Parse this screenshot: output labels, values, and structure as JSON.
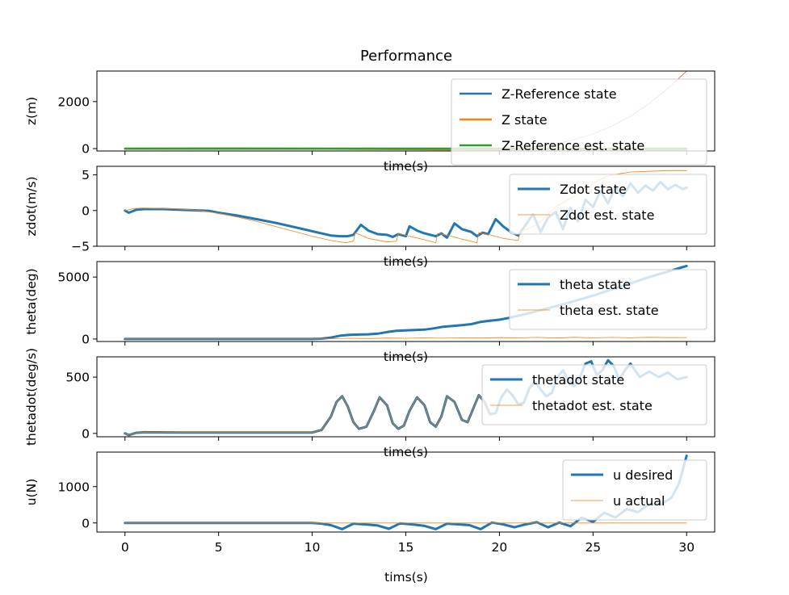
{
  "figure": {
    "title": "Performance",
    "bottom_xlabel": "tims(s)"
  },
  "chart_data": [
    {
      "type": "line",
      "ylabel": "z(m)",
      "xlabel": "time(s)",
      "xlim": [
        -1.5,
        31.5
      ],
      "ylim": [
        -100,
        3300
      ],
      "xticks": [
        0,
        5,
        10,
        15,
        20,
        25,
        30
      ],
      "yticks": [
        0,
        2000
      ],
      "legend_position": "top-right",
      "series": [
        {
          "name": "Z-Reference state",
          "color": "#1f77b4",
          "width": 2.5,
          "x": [
            0,
            5,
            10,
            15,
            20,
            25,
            30
          ],
          "y": [
            0,
            0,
            0,
            0,
            0,
            0,
            0
          ]
        },
        {
          "name": "Z state",
          "color": "#ff7f0e",
          "width": 2.5,
          "x": [
            0,
            2,
            4,
            6,
            8,
            10,
            12,
            14,
            16,
            18,
            20,
            22,
            24,
            26,
            28,
            30
          ],
          "y": [
            0,
            2,
            5,
            6,
            3,
            -2,
            -10,
            -18,
            -27,
            -36,
            -46,
            -56,
            -66,
            -76,
            -86,
            -96
          ]
        },
        {
          "name": "Z-Reference est. state",
          "color": "#2ca02c",
          "width": 2.5,
          "x": [
            0,
            5,
            10,
            15,
            20,
            25,
            30
          ],
          "y": [
            0,
            0,
            0,
            0,
            0,
            0,
            0
          ]
        },
        {
          "name": "",
          "color": "#d62728",
          "width": 0.6,
          "x": [
            19,
            20,
            21,
            22,
            23,
            24,
            25,
            26,
            27,
            28,
            29,
            30
          ],
          "y": [
            0,
            5,
            30,
            90,
            200,
            380,
            620,
            950,
            1380,
            1920,
            2560,
            3300
          ]
        }
      ]
    },
    {
      "type": "line",
      "ylabel": "zdot(m/s)",
      "xlabel": "time(s)",
      "xlim": [
        -1.5,
        31.5
      ],
      "ylim": [
        -5,
        6.2
      ],
      "xticks": [
        0,
        5,
        10,
        15,
        20,
        25,
        30
      ],
      "yticks": [
        -5,
        0,
        5
      ],
      "legend_position": "top-right",
      "series": [
        {
          "name": "Zdot state",
          "color": "#1f77b4",
          "width": 3,
          "x": [
            0,
            0.2,
            0.6,
            1,
            2,
            3,
            4,
            4.5,
            5,
            6,
            7,
            8,
            9,
            10,
            10.5,
            11,
            11.5,
            11.9,
            12.2,
            12.6,
            13,
            13.5,
            14,
            14.3,
            14.6,
            15,
            15.2,
            15.6,
            16,
            16.6,
            16.9,
            17.2,
            17.6,
            18,
            18.5,
            18.8,
            19.1,
            19.4,
            19.8,
            20.2,
            20.6,
            21,
            21.4,
            21.8,
            22.2,
            22.6,
            23,
            23.4,
            23.8,
            24.2,
            24.6,
            25,
            25.4,
            25.8,
            26.2,
            26.6,
            27,
            27.4,
            27.8,
            28.2,
            28.6,
            29,
            29.4,
            29.8,
            30
          ],
          "y": [
            0,
            -0.3,
            0.1,
            0.2,
            0.2,
            0.1,
            0.0,
            -0.05,
            -0.3,
            -0.7,
            -1.2,
            -1.7,
            -2.3,
            -2.9,
            -3.2,
            -3.5,
            -3.6,
            -3.6,
            -3.4,
            -2.0,
            -2.8,
            -3.3,
            -3.4,
            -3.7,
            -3.3,
            -3.6,
            -2.2,
            -2.8,
            -3.2,
            -3.6,
            -3.2,
            -3.8,
            -1.8,
            -2.6,
            -3.0,
            -3.6,
            -3.1,
            -3.3,
            -1.2,
            -2.2,
            -3.0,
            -3.5,
            -2.0,
            -0.5,
            -3.0,
            -1.0,
            -0.2,
            -2.6,
            0.4,
            -1.5,
            1.5,
            0.5,
            2.8,
            1.0,
            3.3,
            2.0,
            3.8,
            2.5,
            3.5,
            2.8,
            4.0,
            3.0,
            3.6,
            3.0,
            3.2
          ]
        },
        {
          "name": "Zdot est. state",
          "color": "#ff7f0e",
          "width": 0.8,
          "x": [
            0,
            0.5,
            1,
            2,
            3,
            4,
            5,
            6,
            7,
            8,
            9,
            10,
            11,
            11.8,
            12.2,
            12.3,
            13,
            14,
            14.5,
            14.6,
            15.2,
            16,
            16.6,
            16.7,
            17.3,
            18,
            18.8,
            18.9,
            19.5,
            20.2,
            21,
            21.1,
            22,
            22.5,
            23,
            24,
            24.5,
            25,
            25.5,
            26,
            27,
            28,
            29,
            30
          ],
          "y": [
            0,
            0.3,
            0.35,
            0.3,
            0.2,
            0.0,
            -0.4,
            -0.9,
            -1.5,
            -2.2,
            -2.9,
            -3.6,
            -4.2,
            -4.5,
            -4.3,
            -3.1,
            -3.9,
            -4.4,
            -4.3,
            -3.2,
            -3.6,
            -4.1,
            -4.5,
            -3.2,
            -3.5,
            -4.0,
            -4.5,
            -3.1,
            -3.4,
            -3.9,
            -4.2,
            -3.0,
            -2.0,
            -0.8,
            0.5,
            2.0,
            3.0,
            3.8,
            4.5,
            5.0,
            5.4,
            5.5,
            5.6,
            5.6
          ]
        }
      ]
    },
    {
      "type": "line",
      "ylabel": "theta(deg)",
      "xlabel": "time(s)",
      "xlim": [
        -1.5,
        31.5
      ],
      "ylim": [
        -200,
        6250
      ],
      "xticks": [
        0,
        5,
        10,
        15,
        20,
        25,
        30
      ],
      "yticks": [
        0,
        5000
      ],
      "legend_position": "top-right",
      "series": [
        {
          "name": "theta state",
          "color": "#1f77b4",
          "width": 3,
          "x": [
            0,
            5,
            10,
            10.5,
            11,
            11.5,
            12,
            12.5,
            13,
            13.5,
            14,
            14.5,
            15,
            15.5,
            16,
            16.5,
            17,
            17.5,
            18,
            18.5,
            19,
            19.5,
            20,
            20.5,
            21,
            21.5,
            22,
            23,
            24,
            25,
            26,
            27,
            28,
            29,
            30
          ],
          "y": [
            0,
            0,
            0,
            30,
            120,
            270,
            340,
            360,
            380,
            430,
            560,
            660,
            700,
            730,
            760,
            860,
            990,
            1060,
            1120,
            1200,
            1380,
            1480,
            1560,
            1700,
            1880,
            2050,
            2250,
            2650,
            3050,
            3500,
            4000,
            4500,
            5000,
            5450,
            5900
          ]
        },
        {
          "name": "theta est. state",
          "color": "#ff7f0e",
          "width": 0.8,
          "x": [
            0,
            10,
            11,
            12,
            13,
            14,
            15,
            16,
            17,
            18,
            19,
            20,
            21,
            22,
            23,
            24,
            25,
            26,
            27,
            28,
            29,
            30
          ],
          "y": [
            0,
            0,
            20,
            60,
            40,
            80,
            60,
            90,
            70,
            100,
            80,
            110,
            90,
            130,
            80,
            140,
            90,
            130,
            100,
            140,
            110,
            120
          ]
        }
      ]
    },
    {
      "type": "line",
      "ylabel": "thetadot(deg/s)",
      "xlabel": "time(s)",
      "xlim": [
        -1.5,
        31.5
      ],
      "ylim": [
        -30,
        680
      ],
      "xticks": [
        0,
        5,
        10,
        15,
        20,
        25,
        30
      ],
      "yticks": [
        0,
        500
      ],
      "legend_position": "top-right",
      "series": [
        {
          "name": "thetadot state",
          "color": "#1f77b4",
          "width": 3,
          "x": [
            0,
            0.2,
            0.6,
            1,
            3,
            5,
            10,
            10.5,
            11,
            11.3,
            11.6,
            11.9,
            12.2,
            12.5,
            12.9,
            13.3,
            13.6,
            14,
            14.3,
            14.6,
            14.9,
            15.2,
            15.6,
            16,
            16.3,
            16.6,
            16.9,
            17.2,
            17.6,
            18,
            18.3,
            18.6,
            18.9,
            19.2,
            19.5,
            19.8,
            20.1,
            20.4,
            20.7,
            21,
            21.3,
            21.6,
            21.9,
            22.2,
            22.5,
            22.8,
            23.1,
            23.4,
            23.7,
            24,
            24.3,
            24.6,
            24.9,
            25.2,
            25.5,
            25.8,
            26.1,
            26.4,
            26.7,
            27,
            27.5,
            28,
            28.5,
            29,
            29.5,
            30
          ],
          "y": [
            0,
            -15,
            5,
            10,
            8,
            8,
            8,
            30,
            150,
            280,
            330,
            240,
            100,
            40,
            60,
            200,
            320,
            250,
            90,
            40,
            70,
            200,
            320,
            250,
            100,
            60,
            150,
            330,
            280,
            120,
            100,
            220,
            340,
            280,
            170,
            180,
            320,
            390,
            340,
            260,
            270,
            400,
            460,
            390,
            330,
            360,
            500,
            560,
            470,
            420,
            500,
            620,
            640,
            520,
            560,
            650,
            600,
            480,
            560,
            620,
            500,
            550,
            500,
            540,
            480,
            500
          ]
        },
        {
          "name": "thetadot est. state",
          "color": "#ff7f0e",
          "width": 0.8,
          "x": [
            0,
            0.2,
            0.6,
            1,
            3,
            5,
            10,
            10.5,
            11,
            11.3,
            11.6,
            11.9,
            12.2,
            12.5,
            12.9,
            13.3,
            13.6,
            14,
            14.3,
            14.6,
            14.9,
            15.2,
            15.6,
            16,
            16.3,
            16.6,
            16.9,
            17.2,
            17.6,
            18,
            18.3,
            18.6,
            18.9,
            19.2,
            19.5
          ],
          "y": [
            0,
            -15,
            5,
            10,
            8,
            8,
            8,
            30,
            150,
            280,
            330,
            240,
            100,
            40,
            60,
            200,
            320,
            250,
            90,
            40,
            70,
            200,
            320,
            250,
            100,
            60,
            150,
            330,
            280,
            120,
            100,
            220,
            340,
            280,
            170
          ]
        }
      ]
    },
    {
      "type": "line",
      "ylabel": "u(N)",
      "xlabel": "tims(s)",
      "xlim": [
        -1.5,
        31.5
      ],
      "ylim": [
        -250,
        1950
      ],
      "xticks": [
        0,
        5,
        10,
        15,
        20,
        25,
        30
      ],
      "yticks": [
        0,
        1000
      ],
      "legend_position": "top-right",
      "series": [
        {
          "name": "u desired",
          "color": "#1f77b4",
          "width": 3,
          "x": [
            0,
            10,
            10.5,
            11,
            11.6,
            12.2,
            12.8,
            13.5,
            14.1,
            14.7,
            15.3,
            16,
            16.6,
            17.2,
            17.8,
            18.4,
            19,
            19.6,
            20.2,
            20.8,
            21.4,
            22,
            22.6,
            23.2,
            23.8,
            24.4,
            25,
            25.6,
            26.2,
            26.8,
            27.4,
            28,
            28.6,
            29.2,
            29.6,
            30
          ],
          "y": [
            0,
            0,
            -20,
            -60,
            -170,
            -20,
            -40,
            -70,
            -160,
            -10,
            -40,
            -80,
            -170,
            -20,
            -40,
            -60,
            -170,
            10,
            -40,
            -120,
            -40,
            20,
            -120,
            10,
            -90,
            150,
            30,
            280,
            150,
            380,
            300,
            520,
            500,
            700,
            1100,
            1850
          ]
        },
        {
          "name": "u actual",
          "color": "#ff7f0e",
          "width": 0.8,
          "x": [
            0,
            30
          ],
          "y": [
            0,
            0
          ]
        }
      ]
    }
  ]
}
